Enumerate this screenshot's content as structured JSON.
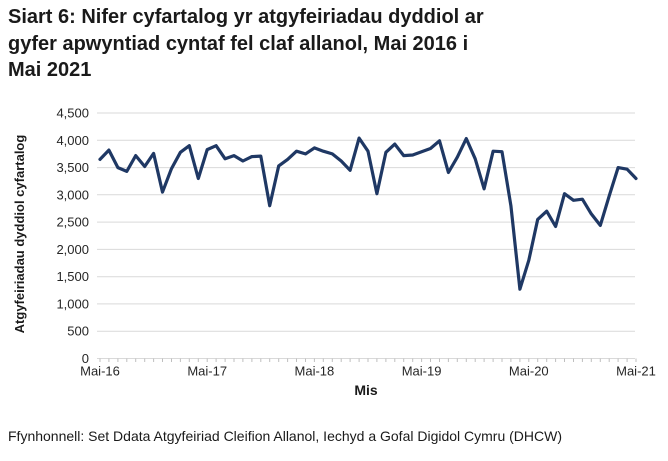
{
  "page": {
    "title_lines": [
      "Siart 6: Nifer cyfartalog yr atgyfeiriadau dyddiol ar",
      "gyfer apwyntiad cyntaf fel claf allanol, Mai 2016 i",
      "Mai 2021"
    ],
    "source_note": "Ffynhonnell: Set Ddata Atgyfeiriad Cleifion Allanol, Iechyd a Gofal Digidol Cymru (DHCW)"
  },
  "chart_data": {
    "type": "line",
    "title": "Siart 6: Nifer cyfartalog yr atgyfeiriadau dyddiol ar gyfer apwyntiad cyntaf fel claf allanol, Mai 2016 i Mai 2021",
    "xlabel": "Mis",
    "ylabel": "Atgyfeiriadau dyddiol cyfartalog",
    "x_range": "Mai-16 to Mai-21, monthly (61 points)",
    "xtick_labels": [
      "Mai-16",
      "Mai-17",
      "Mai-18",
      "Mai-19",
      "Mai-20",
      "Mai-21"
    ],
    "ytick_labels": [
      "0",
      "500",
      "1,000",
      "1,500",
      "2,000",
      "2,500",
      "3,000",
      "3,500",
      "4,000",
      "4,500"
    ],
    "ytick_interval": 500,
    "ylim": [
      0,
      4500
    ],
    "grid": "horizontal-only",
    "legend": "none",
    "line_color": "#1f3864",
    "gridline_color": "#d9d9d9",
    "tick_color": "#bfbfbf",
    "values": [
      3650,
      3820,
      3500,
      3430,
      3720,
      3520,
      3760,
      3050,
      3480,
      3780,
      3900,
      3300,
      3830,
      3900,
      3660,
      3720,
      3620,
      3700,
      3710,
      2800,
      3530,
      3650,
      3800,
      3750,
      3860,
      3800,
      3750,
      3620,
      3450,
      4040,
      3800,
      3020,
      3780,
      3930,
      3720,
      3730,
      3790,
      3850,
      3990,
      3410,
      3690,
      4030,
      3660,
      3110,
      3800,
      3790,
      2800,
      1270,
      1800,
      2550,
      2700,
      2420,
      3020,
      2900,
      2920,
      2650,
      2440,
      2980,
      3500,
      3470,
      3300
    ]
  }
}
